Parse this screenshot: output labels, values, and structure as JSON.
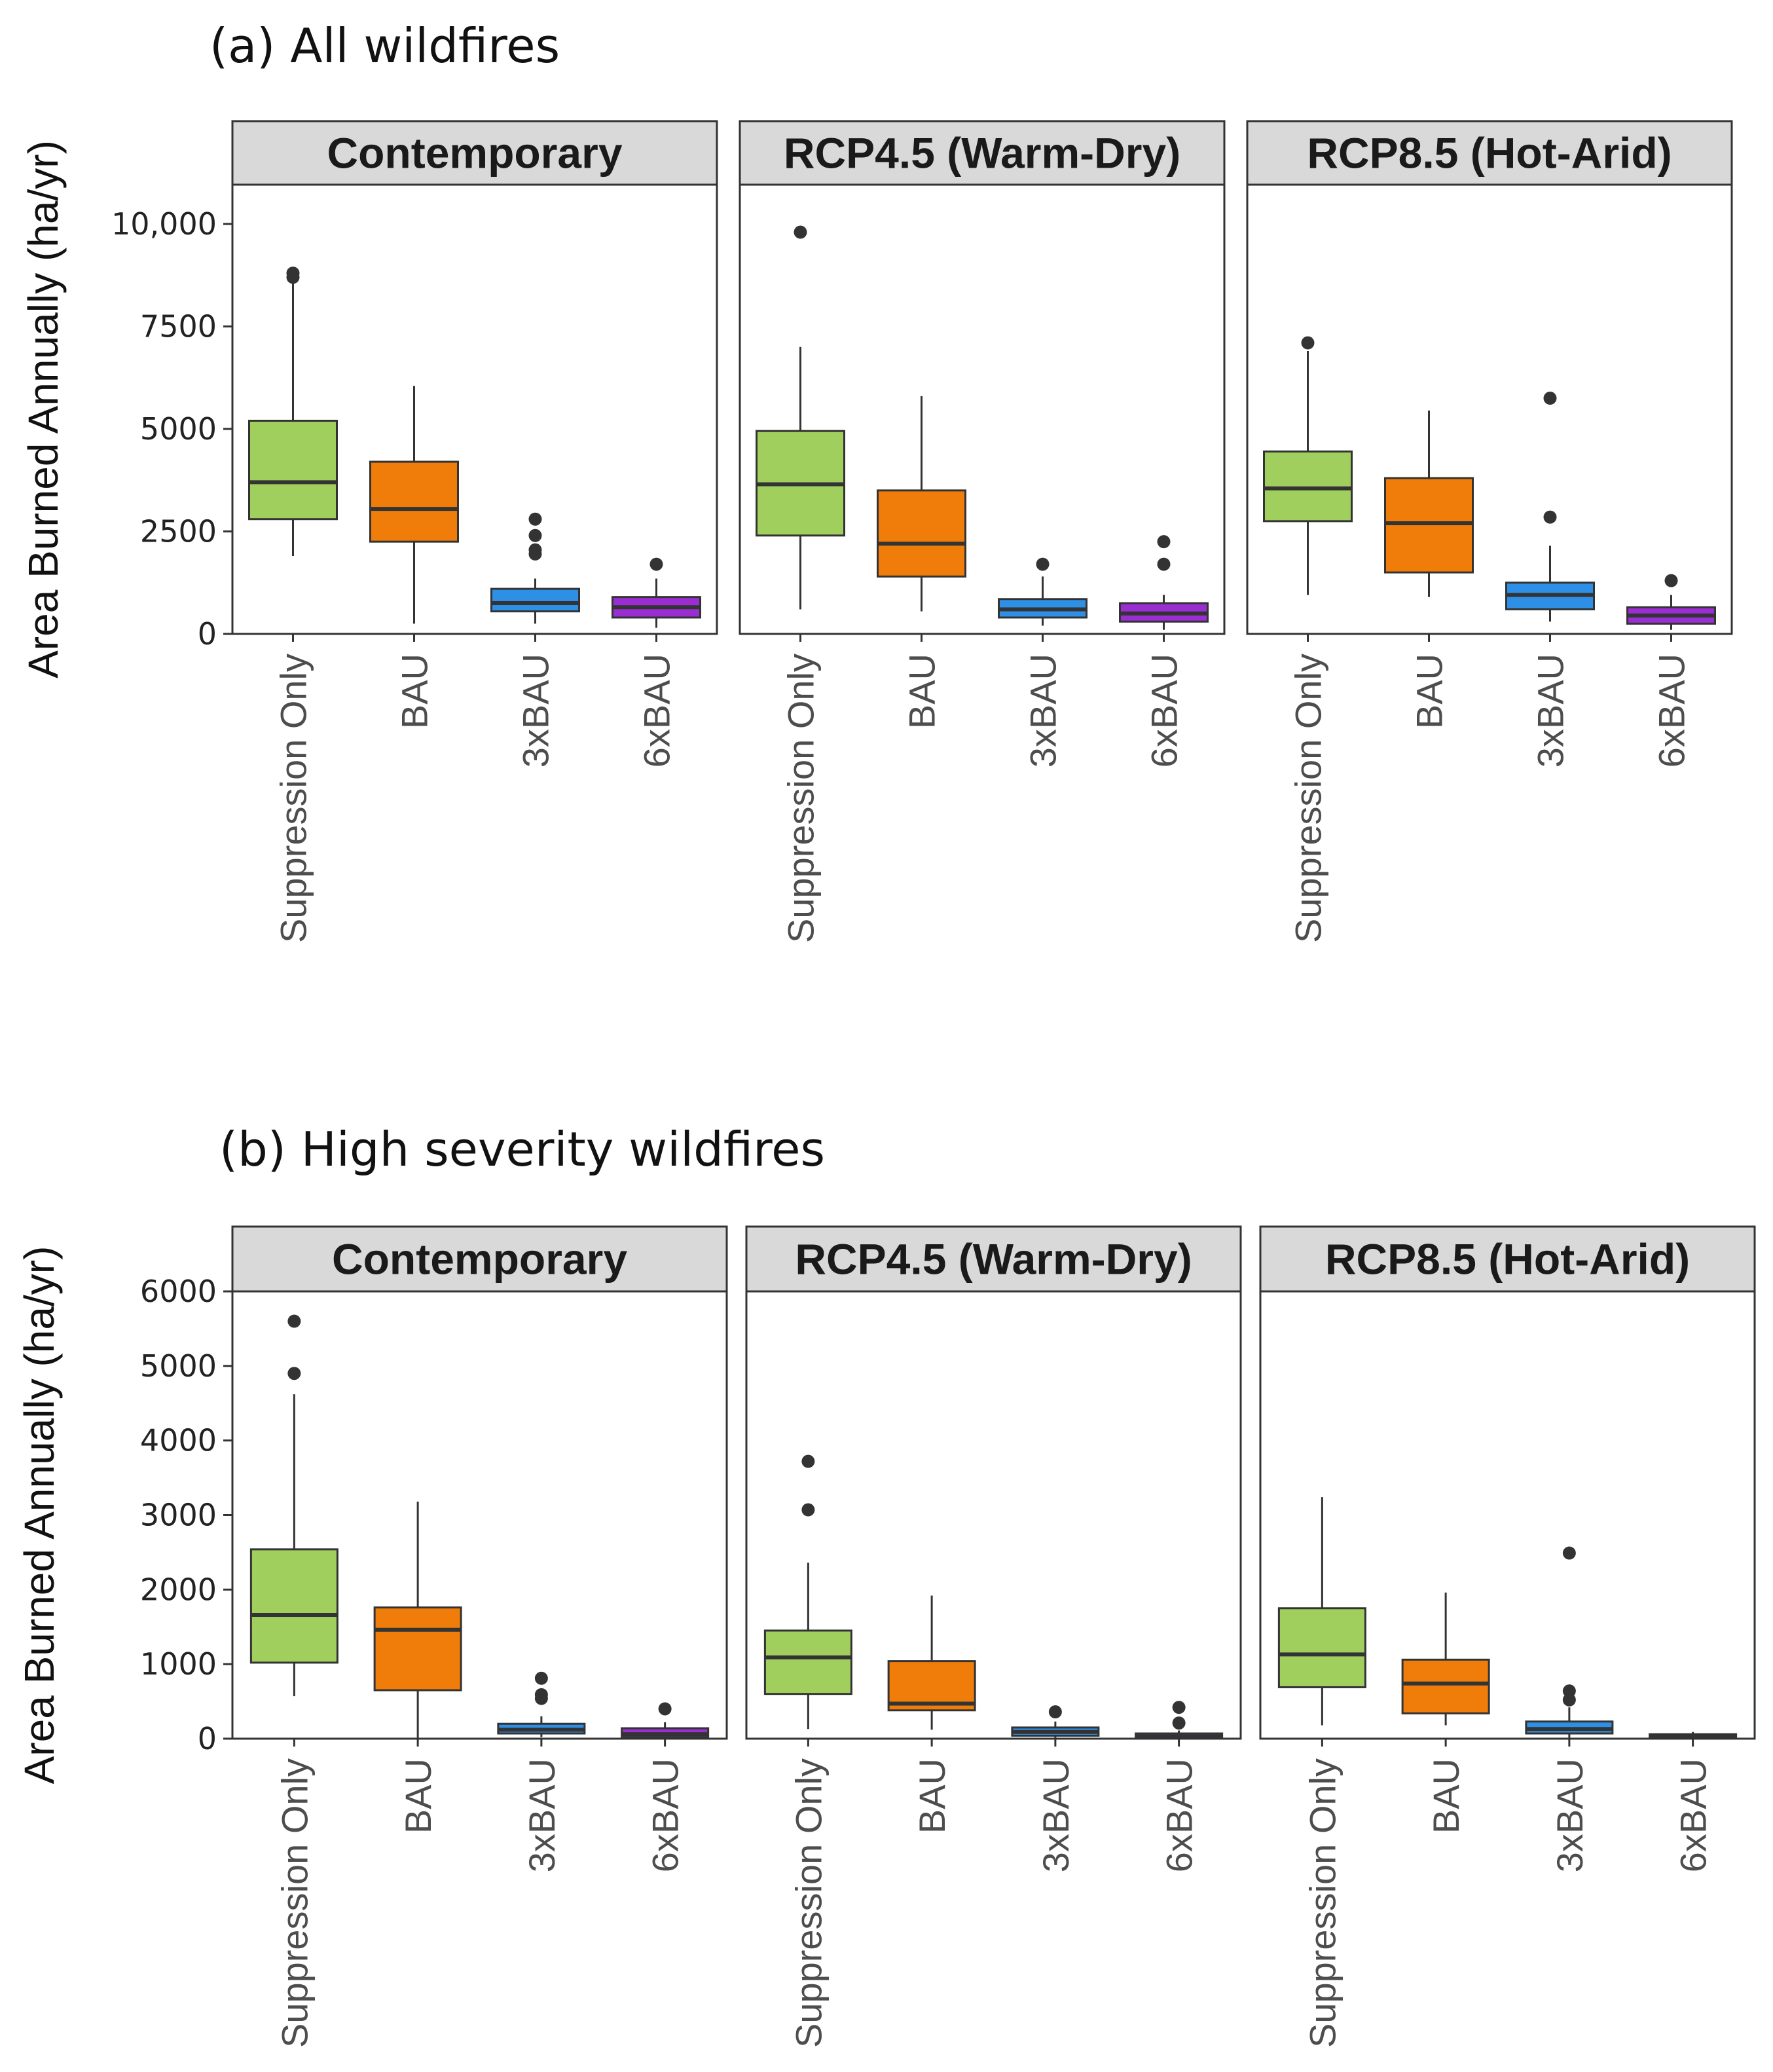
{
  "chart_data": [
    {
      "type": "box",
      "title": "(a) All wildfires",
      "ylabel": "Area Burned Annually (ha/yr)",
      "ylim": [
        0,
        11000
      ],
      "yticks": [
        0,
        2500,
        5000,
        7500,
        10000
      ],
      "ytick_labels": [
        "0",
        "2500",
        "5000",
        "7500",
        "10,000"
      ],
      "categories": [
        "Suppression Only",
        "BAU",
        "3xBAU",
        "6xBAU"
      ],
      "colors": [
        "#a1cf5e",
        "#f07d0a",
        "#2e8fe6",
        "#9b2ed2"
      ],
      "facets": [
        {
          "name": "Contemporary",
          "boxes": [
            {
              "whisker_low": 1900,
              "q1": 2800,
              "median": 3700,
              "q3": 5200,
              "whisker_high": 8600,
              "outliers": [
                8700,
                8800
              ]
            },
            {
              "whisker_low": 250,
              "q1": 2250,
              "median": 3050,
              "q3": 4200,
              "whisker_high": 6050,
              "outliers": []
            },
            {
              "whisker_low": 250,
              "q1": 550,
              "median": 750,
              "q3": 1100,
              "whisker_high": 1350,
              "outliers": [
                1950,
                2050,
                2400,
                2800
              ]
            },
            {
              "whisker_low": 150,
              "q1": 400,
              "median": 650,
              "q3": 900,
              "whisker_high": 1350,
              "outliers": [
                1700
              ]
            }
          ]
        },
        {
          "name": "RCP4.5 (Warm-Dry)",
          "boxes": [
            {
              "whisker_low": 600,
              "q1": 2400,
              "median": 3650,
              "q3": 4950,
              "whisker_high": 7000,
              "outliers": [
                9800
              ]
            },
            {
              "whisker_low": 550,
              "q1": 1400,
              "median": 2200,
              "q3": 3500,
              "whisker_high": 5800,
              "outliers": []
            },
            {
              "whisker_low": 200,
              "q1": 400,
              "median": 600,
              "q3": 850,
              "whisker_high": 1400,
              "outliers": [
                1700
              ]
            },
            {
              "whisker_low": 100,
              "q1": 300,
              "median": 500,
              "q3": 750,
              "whisker_high": 950,
              "outliers": [
                1700,
                2250
              ]
            }
          ]
        },
        {
          "name": "RCP8.5 (Hot-Arid)",
          "boxes": [
            {
              "whisker_low": 950,
              "q1": 2750,
              "median": 3550,
              "q3": 4450,
              "whisker_high": 6900,
              "outliers": [
                7100
              ]
            },
            {
              "whisker_low": 900,
              "q1": 1500,
              "median": 2700,
              "q3": 3800,
              "whisker_high": 5450,
              "outliers": []
            },
            {
              "whisker_low": 300,
              "q1": 600,
              "median": 950,
              "q3": 1250,
              "whisker_high": 2150,
              "outliers": [
                2850,
                5750
              ]
            },
            {
              "whisker_low": 100,
              "q1": 250,
              "median": 450,
              "q3": 650,
              "whisker_high": 950,
              "outliers": [
                1300
              ]
            }
          ]
        }
      ]
    },
    {
      "type": "box",
      "title": "(b) High severity wildfires",
      "ylabel": "Area Burned Annually (ha/yr)",
      "ylim": [
        0,
        6000
      ],
      "yticks": [
        0,
        1000,
        2000,
        3000,
        4000,
        5000,
        6000
      ],
      "ytick_labels": [
        "0",
        "1000",
        "2000",
        "3000",
        "4000",
        "5000",
        "6000"
      ],
      "categories": [
        "Suppression Only",
        "BAU",
        "3xBAU",
        "6xBAU"
      ],
      "colors": [
        "#a1cf5e",
        "#f07d0a",
        "#2e8fe6",
        "#9b2ed2"
      ],
      "facets": [
        {
          "name": "Contemporary",
          "boxes": [
            {
              "whisker_low": 570,
              "q1": 1020,
              "median": 1660,
              "q3": 2540,
              "whisker_high": 4620,
              "outliers": [
                4900,
                5600
              ]
            },
            {
              "whisker_low": 0,
              "q1": 650,
              "median": 1460,
              "q3": 1760,
              "whisker_high": 3180,
              "outliers": []
            },
            {
              "whisker_low": 20,
              "q1": 70,
              "median": 120,
              "q3": 200,
              "whisker_high": 300,
              "outliers": [
                540,
                590,
                810
              ]
            },
            {
              "whisker_low": 0,
              "q1": 20,
              "median": 60,
              "q3": 140,
              "whisker_high": 220,
              "outliers": [
                400
              ]
            }
          ]
        },
        {
          "name": "RCP4.5 (Warm-Dry)",
          "boxes": [
            {
              "whisker_low": 130,
              "q1": 600,
              "median": 1090,
              "q3": 1450,
              "whisker_high": 2360,
              "outliers": [
                3070,
                3720
              ]
            },
            {
              "whisker_low": 120,
              "q1": 380,
              "median": 470,
              "q3": 1040,
              "whisker_high": 1920,
              "outliers": []
            },
            {
              "whisker_low": 0,
              "q1": 40,
              "median": 90,
              "q3": 150,
              "whisker_high": 230,
              "outliers": [
                360
              ]
            },
            {
              "whisker_low": 0,
              "q1": 10,
              "median": 30,
              "q3": 70,
              "whisker_high": 110,
              "outliers": [
                210,
                420
              ]
            }
          ]
        },
        {
          "name": "RCP8.5 (Hot-Arid)",
          "boxes": [
            {
              "whisker_low": 180,
              "q1": 690,
              "median": 1130,
              "q3": 1750,
              "whisker_high": 3240,
              "outliers": []
            },
            {
              "whisker_low": 180,
              "q1": 340,
              "median": 740,
              "q3": 1060,
              "whisker_high": 1960,
              "outliers": []
            },
            {
              "whisker_low": 10,
              "q1": 70,
              "median": 130,
              "q3": 230,
              "whisker_high": 420,
              "outliers": [
                520,
                640,
                2490
              ]
            },
            {
              "whisker_low": 0,
              "q1": 10,
              "median": 30,
              "q3": 60,
              "whisker_high": 90,
              "outliers": []
            }
          ]
        }
      ]
    }
  ]
}
